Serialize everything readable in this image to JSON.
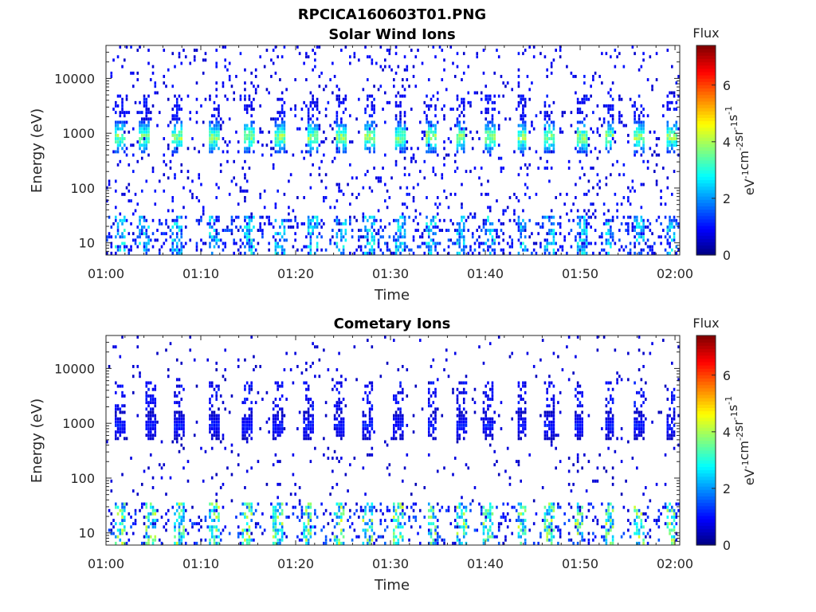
{
  "figure": {
    "filename_title": "RPCICA160603T01.PNG"
  },
  "colors": {
    "axis": "#262626",
    "background": "#ffffff",
    "colormap": "jet"
  },
  "chart_data": [
    {
      "type": "heatmap",
      "title": "Solar Wind Ions",
      "xlabel": "Time",
      "ylabel": "Energy (eV)",
      "x_tick_labels": [
        "01:00",
        "01:10",
        "01:20",
        "01:30",
        "01:40",
        "01:50",
        "02:00"
      ],
      "x_tick_minutes": [
        0,
        10,
        20,
        30,
        40,
        50,
        60
      ],
      "xlim_minutes": [
        0,
        60.5
      ],
      "y_scale": "log",
      "ylim": [
        6,
        40000
      ],
      "y_tick_labels": [
        "10",
        "100",
        "1000",
        "10000"
      ],
      "y_tick_values": [
        10,
        100,
        1000,
        10000
      ],
      "grid": false,
      "colorbar": {
        "title": "Flux",
        "label": "eV⁻¹cm⁻²sr⁻¹s⁻¹",
        "label_parts": [
          {
            "text": "eV",
            "sup": "-1"
          },
          {
            "text": "cm",
            "sup": "-2"
          },
          {
            "text": "sr",
            "sup": "-1"
          },
          {
            "text": "s",
            "sup": "-1"
          }
        ],
        "range": [
          0,
          7.4
        ],
        "tick_labels": [
          "0",
          "2",
          "4",
          "6"
        ],
        "tick_values": [
          0,
          2,
          4,
          6
        ]
      },
      "sweep_times_minutes": [
        1.5,
        4.1,
        7.5,
        11.4,
        15.2,
        18.3,
        21.9,
        24.9,
        27.9,
        31.1,
        34.3,
        37.4,
        40.5,
        43.9,
        46.8,
        50.2,
        53.1,
        56.3,
        59.7
      ],
      "beam": {
        "energy_center_eV": 850,
        "peak_flux": 4.2
      },
      "low_energy_band": {
        "energy_range_eV": [
          6,
          30
        ],
        "peak_flux": 3.0
      },
      "background_flux": 0.8
    },
    {
      "type": "heatmap",
      "title": "Cometary Ions",
      "xlabel": "Time",
      "ylabel": "Energy (eV)",
      "x_tick_labels": [
        "01:00",
        "01:10",
        "01:20",
        "01:30",
        "01:40",
        "01:50",
        "02:00"
      ],
      "x_tick_minutes": [
        0,
        10,
        20,
        30,
        40,
        50,
        60
      ],
      "xlim_minutes": [
        0,
        60.5
      ],
      "y_scale": "log",
      "ylim": [
        6,
        40000
      ],
      "y_tick_labels": [
        "10",
        "100",
        "1000",
        "10000"
      ],
      "y_tick_values": [
        10,
        100,
        1000,
        10000
      ],
      "grid": false,
      "colorbar": {
        "title": "Flux",
        "label": "eV⁻¹cm⁻²sr⁻¹s⁻¹",
        "label_parts": [
          {
            "text": "eV",
            "sup": "-1"
          },
          {
            "text": "cm",
            "sup": "-2"
          },
          {
            "text": "sr",
            "sup": "-1"
          },
          {
            "text": "s",
            "sup": "-1"
          }
        ],
        "range": [
          0,
          7.4
        ],
        "tick_labels": [
          "0",
          "2",
          "4",
          "6"
        ],
        "tick_values": [
          0,
          2,
          4,
          6
        ]
      },
      "sweep_times_minutes": [
        1.5,
        4.7,
        7.7,
        11.4,
        14.9,
        18.2,
        21.4,
        24.6,
        27.6,
        30.8,
        34.4,
        37.5,
        40.3,
        43.9,
        46.7,
        49.9,
        53.1,
        56.3,
        59.6
      ],
      "beam": {
        "energy_center_eV": 900,
        "peak_flux": 1.2
      },
      "low_energy_band": {
        "energy_range_eV": [
          6,
          35
        ],
        "peak_flux": 4.2
      },
      "background_flux": 0.6
    }
  ]
}
